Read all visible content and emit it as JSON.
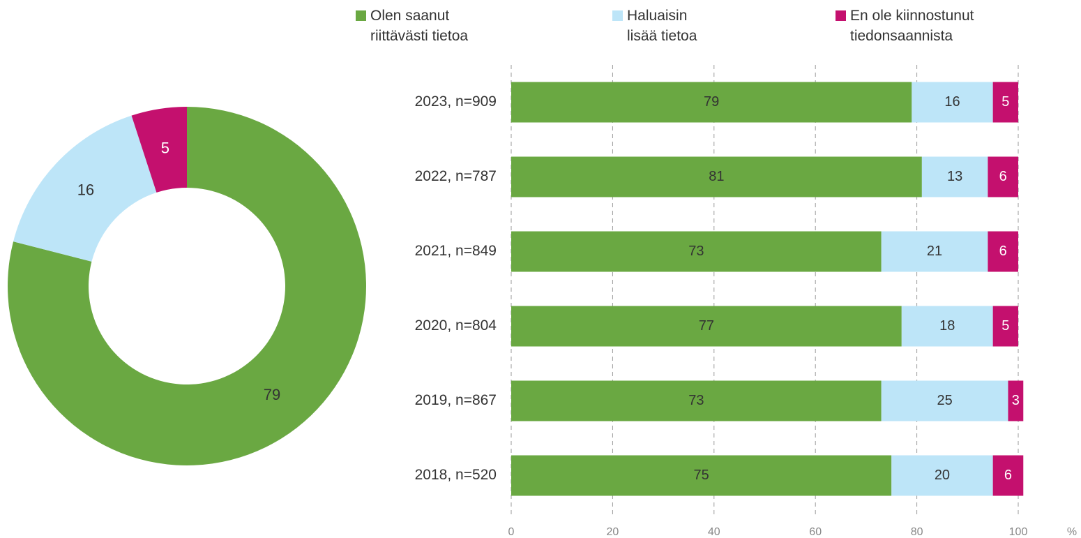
{
  "chart_data": [
    {
      "type": "donut",
      "values": [
        79,
        16,
        5
      ],
      "colors": [
        "#6aa842",
        "#bde5f8",
        "#c4106e"
      ]
    },
    {
      "type": "stacked-bar-horizontal",
      "categories": [
        "2023, n=909",
        "2022, n=787",
        "2021, n=849",
        "2020, n=804",
        "2019, n=867",
        "2018, n=520"
      ],
      "series": [
        {
          "name": "Olen saanut riittävästi tietoa",
          "color": "#6aa842",
          "values": [
            79,
            81,
            73,
            77,
            73,
            75
          ]
        },
        {
          "name": "Haluaisin lisää tietoa",
          "color": "#bde5f8",
          "values": [
            16,
            13,
            21,
            18,
            25,
            20
          ]
        },
        {
          "name": "En ole kiinnostunut tiedonsaannista",
          "color": "#c4106e",
          "values": [
            5,
            6,
            6,
            5,
            3,
            6
          ]
        }
      ],
      "xlabel": "%",
      "xlim": [
        0,
        100
      ],
      "xticks": [
        0,
        20,
        40,
        60,
        80,
        100
      ],
      "grid": true
    }
  ]
}
